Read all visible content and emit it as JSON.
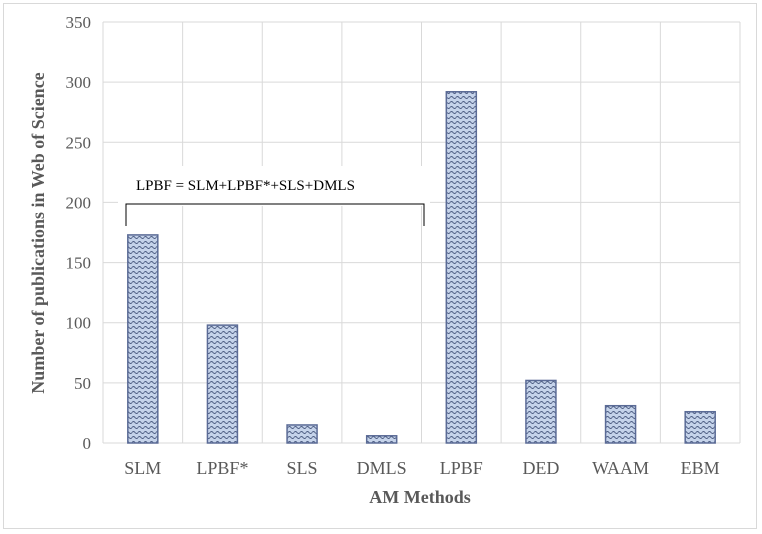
{
  "chart_data": {
    "type": "bar",
    "xlabel": "AM Methods",
    "ylabel": "Number of publications in Web of Science",
    "categories": [
      "SLM",
      "LPBF*",
      "SLS",
      "DMLS",
      "LPBF",
      "DED",
      "WAAM",
      "EBM"
    ],
    "values": [
      173,
      98,
      15,
      6,
      292,
      52,
      31,
      26
    ],
    "ylim": [
      0,
      350
    ],
    "yticks": [
      "0",
      "50",
      "100",
      "150",
      "200",
      "250",
      "300",
      "350"
    ],
    "grid": true,
    "legend": "none",
    "annotation": "LPBF = SLM+LPBF*+SLS+DMLS",
    "colors": {
      "bar_fill": "#c5d3ea",
      "bar_stroke": "#5b6b96",
      "grid": "#d9d9d9",
      "text": "#595959"
    }
  }
}
